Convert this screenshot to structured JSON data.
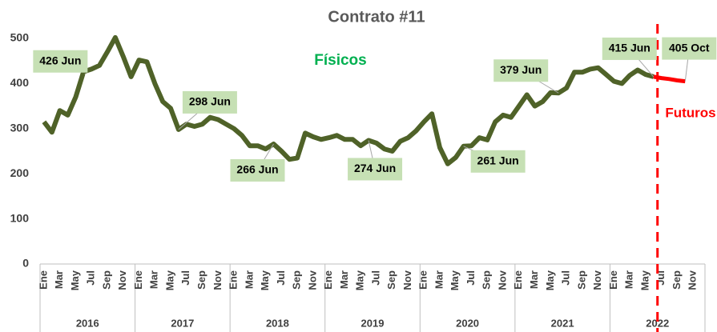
{
  "chart_data": {
    "type": "line",
    "title": "Contrato #11",
    "annotations": [
      "Físicos",
      "Futuros"
    ],
    "categories": [
      "Ene",
      null,
      "Mar",
      null,
      "May",
      null,
      "Jul",
      null,
      "Sep",
      null,
      "Nov",
      null,
      "Ene",
      null,
      "Mar",
      null,
      "May",
      null,
      "Jul",
      null,
      "Sep",
      null,
      "Nov",
      null,
      "Ene",
      null,
      "Mar",
      null,
      "May",
      null,
      "Jul",
      null,
      "Sep",
      null,
      "Nov",
      null,
      "Ene",
      null,
      "Mar",
      null,
      "May",
      null,
      "Jul",
      null,
      "Sep",
      null,
      "Nov",
      null,
      "Ene",
      null,
      "Mar",
      null,
      "May",
      null,
      "Jul",
      null,
      "Sep",
      null,
      "Nov",
      null,
      "Ene",
      null,
      "Mar",
      null,
      "May",
      null,
      "Jul",
      null,
      "Sep",
      null,
      "Nov",
      null,
      "Ene",
      null,
      "Mar",
      null,
      "May",
      null,
      "Jul",
      null,
      "Sep",
      null,
      "Nov",
      null
    ],
    "years": [
      "2016",
      "2017",
      "2018",
      "2019",
      "2020",
      "2021",
      "2022"
    ],
    "ylim": [
      0,
      500
    ],
    "yticks": [
      0,
      100,
      200,
      300,
      400,
      500
    ],
    "grid": false,
    "series": [
      {
        "name": "Físicos",
        "color": "#4f6228",
        "values": [
          315,
          292,
          340,
          330,
          370,
          426,
          432,
          440,
          470,
          502,
          460,
          415,
          452,
          448,
          400,
          360,
          345,
          298,
          310,
          305,
          310,
          325,
          320,
          310,
          300,
          285,
          262,
          262,
          255,
          266,
          250,
          232,
          235,
          290,
          282,
          276,
          280,
          285,
          276,
          276,
          262,
          274,
          268,
          255,
          250,
          272,
          280,
          295,
          315,
          333,
          258,
          222,
          236,
          261,
          262,
          280,
          275,
          315,
          330,
          325,
          350,
          375,
          350,
          360,
          380,
          379,
          390,
          425,
          425,
          432,
          435,
          420,
          405,
          400,
          418,
          430,
          420,
          415,
          null,
          null,
          null,
          null,
          null,
          null
        ],
        "value_labels": [
          null,
          null,
          null,
          null,
          null,
          "426 Jun",
          null,
          null,
          null,
          null,
          null,
          null,
          null,
          null,
          null,
          null,
          null,
          "298 Jun",
          null,
          null,
          null,
          null,
          null,
          null,
          null,
          null,
          null,
          null,
          null,
          "266 Jun",
          null,
          null,
          null,
          null,
          null,
          null,
          null,
          null,
          null,
          null,
          null,
          "274 Jun",
          null,
          null,
          null,
          null,
          null,
          null,
          null,
          null,
          null,
          null,
          null,
          "261 Jun",
          null,
          null,
          null,
          null,
          null,
          null,
          null,
          null,
          null,
          null,
          null,
          "379 Jun",
          null,
          null,
          null,
          null,
          null,
          null,
          null,
          null,
          null,
          null,
          null,
          "415 Jun",
          null,
          null,
          null,
          null,
          null,
          null
        ]
      },
      {
        "name": "Futuros",
        "color": "#ff0000",
        "values": [
          null,
          null,
          null,
          null,
          null,
          null,
          null,
          null,
          null,
          null,
          null,
          null,
          null,
          null,
          null,
          null,
          null,
          null,
          null,
          null,
          null,
          null,
          null,
          null,
          null,
          null,
          null,
          null,
          null,
          null,
          null,
          null,
          null,
          null,
          null,
          null,
          null,
          null,
          null,
          null,
          null,
          null,
          null,
          null,
          null,
          null,
          null,
          null,
          null,
          null,
          null,
          null,
          null,
          null,
          null,
          null,
          null,
          null,
          null,
          null,
          null,
          null,
          null,
          null,
          null,
          null,
          null,
          null,
          null,
          null,
          null,
          null,
          null,
          null,
          null,
          null,
          null,
          415,
          412,
          410,
          407,
          405,
          null,
          null
        ],
        "value_labels": [
          null,
          null,
          null,
          null,
          null,
          null,
          null,
          null,
          null,
          null,
          null,
          null,
          null,
          null,
          null,
          null,
          null,
          null,
          null,
          null,
          null,
          null,
          null,
          null,
          null,
          null,
          null,
          null,
          null,
          null,
          null,
          null,
          null,
          null,
          null,
          null,
          null,
          null,
          null,
          null,
          null,
          null,
          null,
          null,
          null,
          null,
          null,
          null,
          null,
          null,
          null,
          null,
          null,
          null,
          null,
          null,
          null,
          null,
          null,
          null,
          null,
          null,
          null,
          null,
          null,
          null,
          null,
          null,
          null,
          null,
          null,
          null,
          null,
          null,
          null,
          null,
          null,
          null,
          null,
          null,
          null,
          "405 Oct",
          null,
          null
        ]
      }
    ]
  }
}
